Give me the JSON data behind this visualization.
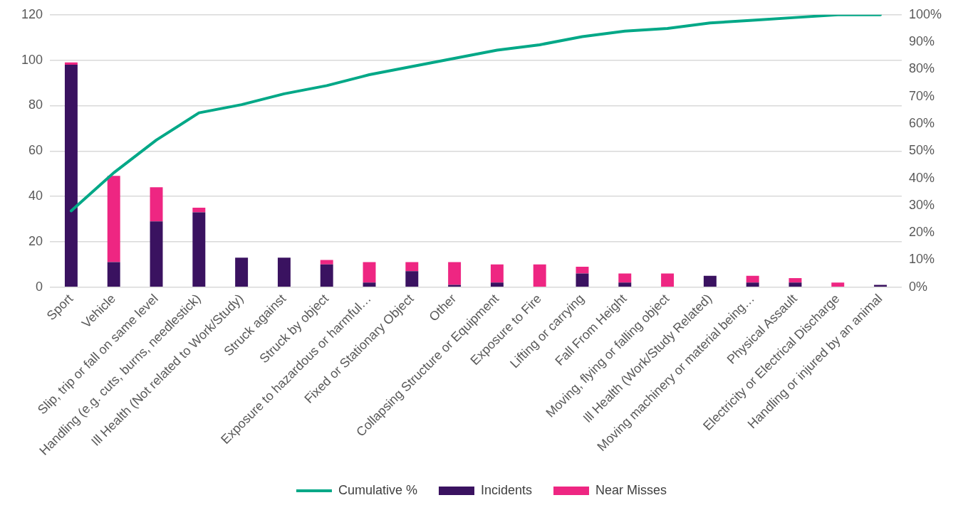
{
  "chart_data": {
    "type": "bar",
    "stacked": true,
    "categories": [
      "Sport",
      "Vehicle",
      "Slip, trip or fall on same level",
      "Handling (e.g. cuts, burns, needlestick)",
      "Ill Health (Not related to Work/Study)",
      "Struck against",
      "Struck by object",
      "Exposure to hazardous or harmful…",
      "Fixed or Stationary Object",
      "Other",
      "Collapsing Structure or Equipment",
      "Exposure to Fire",
      "Lifting or carrying",
      "Fall From Height",
      "Moving, flying or falling object",
      "Ill Health (Work/Study Related)",
      "Moving machinery or material being…",
      "Physical Assault",
      "Electricity or Electrical Discharge",
      "Handling or injured by an animal"
    ],
    "series": [
      {
        "name": "Incidents",
        "color": "#3a1260",
        "values": [
          98,
          11,
          29,
          33,
          13,
          13,
          10,
          2,
          7,
          1,
          2,
          0,
          6,
          2,
          0,
          5,
          2,
          2,
          0,
          1
        ]
      },
      {
        "name": "Near Misses",
        "color": "#ee2682",
        "values": [
          1,
          38,
          15,
          2,
          0,
          0,
          2,
          9,
          4,
          10,
          8,
          10,
          3,
          4,
          6,
          0,
          3,
          2,
          2,
          0
        ]
      },
      {
        "name": "Cumulative %",
        "type": "line",
        "axis": "y2",
        "color": "#00a887",
        "marker": "none",
        "values": [
          28,
          42,
          54,
          64,
          67,
          71,
          74,
          78,
          81,
          84,
          87,
          89,
          92,
          94,
          95,
          97,
          98,
          99,
          100,
          100
        ]
      }
    ],
    "ylim": [
      0,
      120
    ],
    "yticks": [
      0,
      20,
      40,
      60,
      80,
      100,
      120
    ],
    "y2lim": [
      0,
      100
    ],
    "y2ticks": [
      {
        "value": 0,
        "label": "0%"
      },
      {
        "value": 10,
        "label": "10%"
      },
      {
        "value": 20,
        "label": "20%"
      },
      {
        "value": 30,
        "label": "30%"
      },
      {
        "value": 40,
        "label": "40%"
      },
      {
        "value": 50,
        "label": "50%"
      },
      {
        "value": 60,
        "label": "60%"
      },
      {
        "value": 70,
        "label": "70%"
      },
      {
        "value": 80,
        "label": "80%"
      },
      {
        "value": 90,
        "label": "90%"
      },
      {
        "value": 100,
        "label": "100%"
      }
    ],
    "grid": "y",
    "legend": "bottom"
  }
}
